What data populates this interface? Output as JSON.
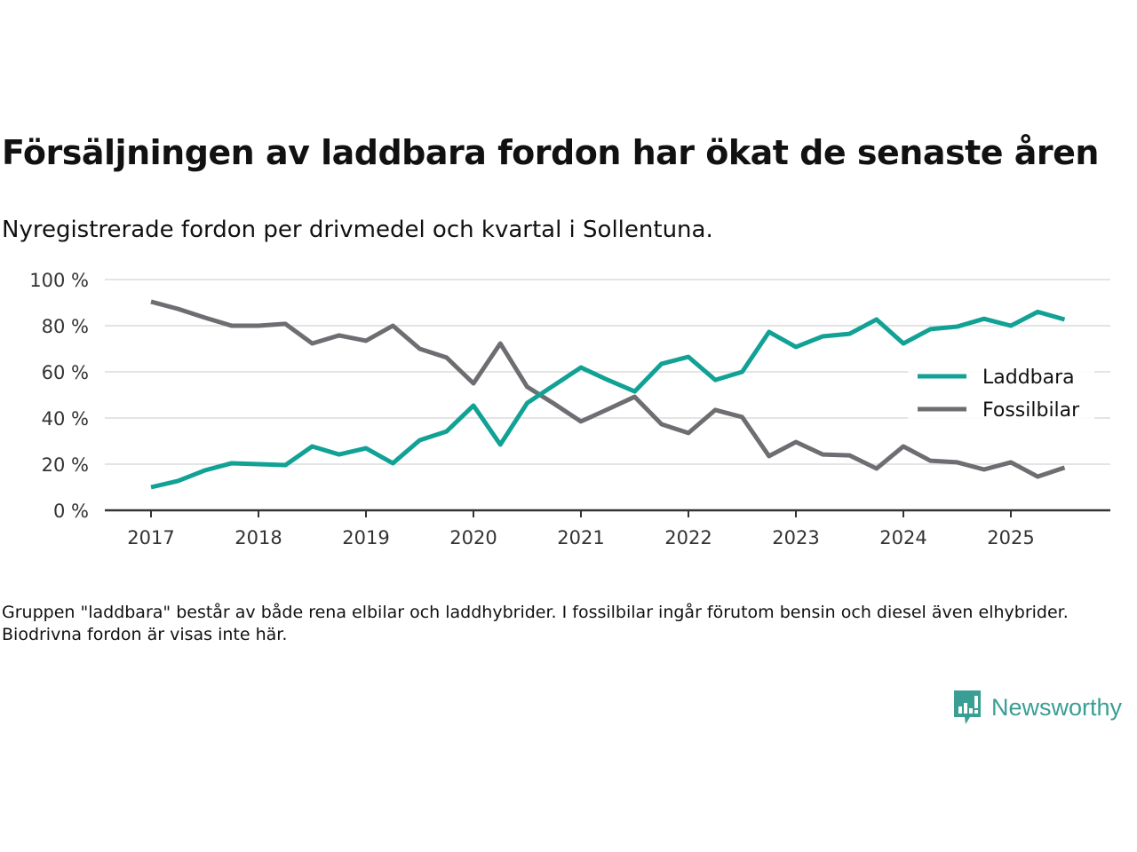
{
  "title": "Försäljningen av laddbara fordon har ökat de senaste åren",
  "subtitle": "Nyregistrerade fordon per drivmedel och kvartal i Sollentuna.",
  "note": "Gruppen \"laddbara\" består av både rena elbilar och laddhybrider. I fossilbilar ingår förutom bensin och diesel även elhybrider. Biodrivna fordon är visas inte här.",
  "brand": {
    "name": "Newsworthy",
    "icon": "newsworthy-logo-icon",
    "color": "#3a9e94"
  },
  "chart_data": {
    "type": "line",
    "title": "Försäljningen av laddbara fordon har ökat de senaste åren",
    "xlabel": "",
    "ylabel": "",
    "ylim": [
      0,
      100
    ],
    "yticks": [
      0,
      20,
      40,
      60,
      80,
      100
    ],
    "ytick_labels": [
      "0 %",
      "20 %",
      "40 %",
      "60 %",
      "80 %",
      "100 %"
    ],
    "xticks": [
      "2017",
      "2018",
      "2019",
      "2020",
      "2021",
      "2022",
      "2023",
      "2024",
      "2025"
    ],
    "x": [
      "2017Q1",
      "2017Q2",
      "2017Q3",
      "2017Q4",
      "2018Q1",
      "2018Q2",
      "2018Q3",
      "2018Q4",
      "2019Q1",
      "2019Q2",
      "2019Q3",
      "2019Q4",
      "2020Q1",
      "2020Q2",
      "2020Q3",
      "2020Q4",
      "2021Q1",
      "2021Q2",
      "2021Q3",
      "2021Q4",
      "2022Q1",
      "2022Q2",
      "2022Q3",
      "2022Q4",
      "2023Q1",
      "2023Q2",
      "2023Q3",
      "2023Q4",
      "2024Q1",
      "2024Q2",
      "2024Q3",
      "2024Q4",
      "2025Q1",
      "2025Q2",
      "2025Q3"
    ],
    "grid": true,
    "legend_position": "right",
    "series": [
      {
        "name": "Laddbara",
        "color": "#11a195",
        "values": [
          10,
          12.7,
          17.3,
          20.4,
          20,
          19.6,
          27.7,
          24.2,
          26.9,
          20.4,
          30.4,
          34.2,
          45.4,
          28.5,
          46.5,
          54.2,
          61.9,
          56.5,
          51.5,
          63.5,
          66.5,
          56.5,
          60,
          77.3,
          70.8,
          75.4,
          76.5,
          82.7,
          72.3,
          78.5,
          79.6,
          83,
          80,
          86,
          82.7
        ]
      },
      {
        "name": "Fossilbilar",
        "color": "#6e6e72",
        "values": [
          90.4,
          87.3,
          83.5,
          80,
          80,
          80.8,
          72.3,
          75.8,
          73.5,
          80,
          70,
          66.2,
          55,
          72.3,
          53.5,
          46.2,
          38.5,
          43.8,
          49.2,
          37.3,
          33.5,
          43.5,
          40.4,
          23.5,
          29.6,
          24.2,
          23.8,
          18.1,
          27.7,
          21.5,
          20.8,
          17.7,
          20.8,
          14.6,
          18.5
        ]
      }
    ]
  }
}
